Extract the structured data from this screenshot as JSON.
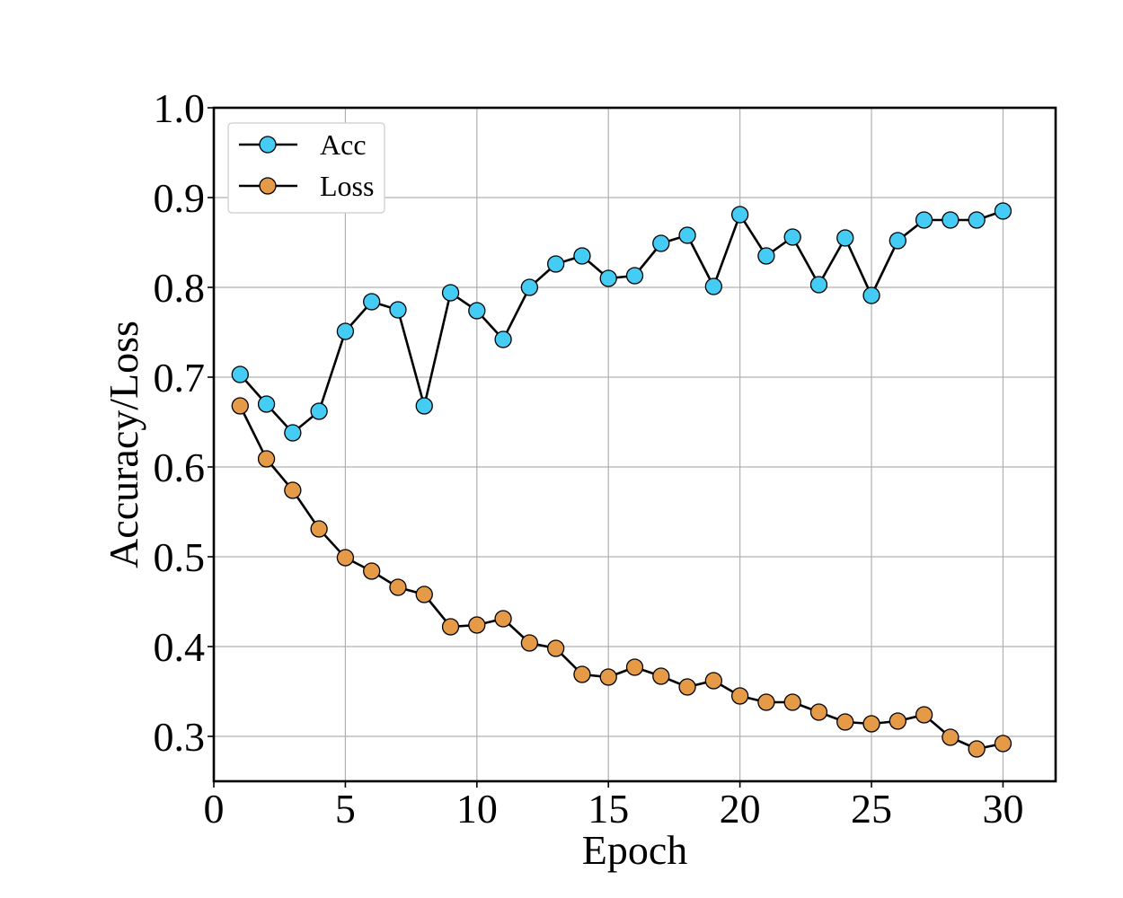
{
  "chart_data": {
    "type": "line",
    "xlabel": "Epoch",
    "ylabel": "Accuracy/Loss",
    "xlim": [
      0,
      32
    ],
    "ylim": [
      0.25,
      1.0
    ],
    "x_ticks": [
      0,
      5,
      10,
      15,
      20,
      25,
      30
    ],
    "y_ticks": [
      0.3,
      0.4,
      0.5,
      0.6,
      0.7,
      0.8,
      0.9,
      1.0
    ],
    "x_tick_labels": [
      "0",
      "5",
      "10",
      "15",
      "20",
      "25",
      "30"
    ],
    "y_tick_labels": [
      "0.3",
      "0.4",
      "0.5",
      "0.6",
      "0.7",
      "0.8",
      "0.9",
      "1.0"
    ],
    "grid": true,
    "legend_position": "top-left",
    "x": [
      1,
      2,
      3,
      4,
      5,
      6,
      7,
      8,
      9,
      10,
      11,
      12,
      13,
      14,
      15,
      16,
      17,
      18,
      19,
      20,
      21,
      22,
      23,
      24,
      25,
      26,
      27,
      28,
      29,
      30
    ],
    "series": [
      {
        "name": "Acc",
        "color": "#45ccf5",
        "values": [
          0.703,
          0.67,
          0.638,
          0.662,
          0.751,
          0.784,
          0.775,
          0.668,
          0.794,
          0.774,
          0.742,
          0.8,
          0.826,
          0.835,
          0.81,
          0.813,
          0.849,
          0.858,
          0.801,
          0.881,
          0.835,
          0.856,
          0.803,
          0.855,
          0.791,
          0.852,
          0.875,
          0.875,
          0.875,
          0.885
        ]
      },
      {
        "name": "Loss",
        "color": "#e49a46",
        "values": [
          0.668,
          0.609,
          0.574,
          0.531,
          0.499,
          0.484,
          0.466,
          0.458,
          0.422,
          0.424,
          0.431,
          0.404,
          0.398,
          0.369,
          0.366,
          0.377,
          0.367,
          0.355,
          0.362,
          0.345,
          0.338,
          0.338,
          0.327,
          0.316,
          0.314,
          0.317,
          0.324,
          0.299,
          0.286,
          0.292
        ]
      }
    ]
  }
}
